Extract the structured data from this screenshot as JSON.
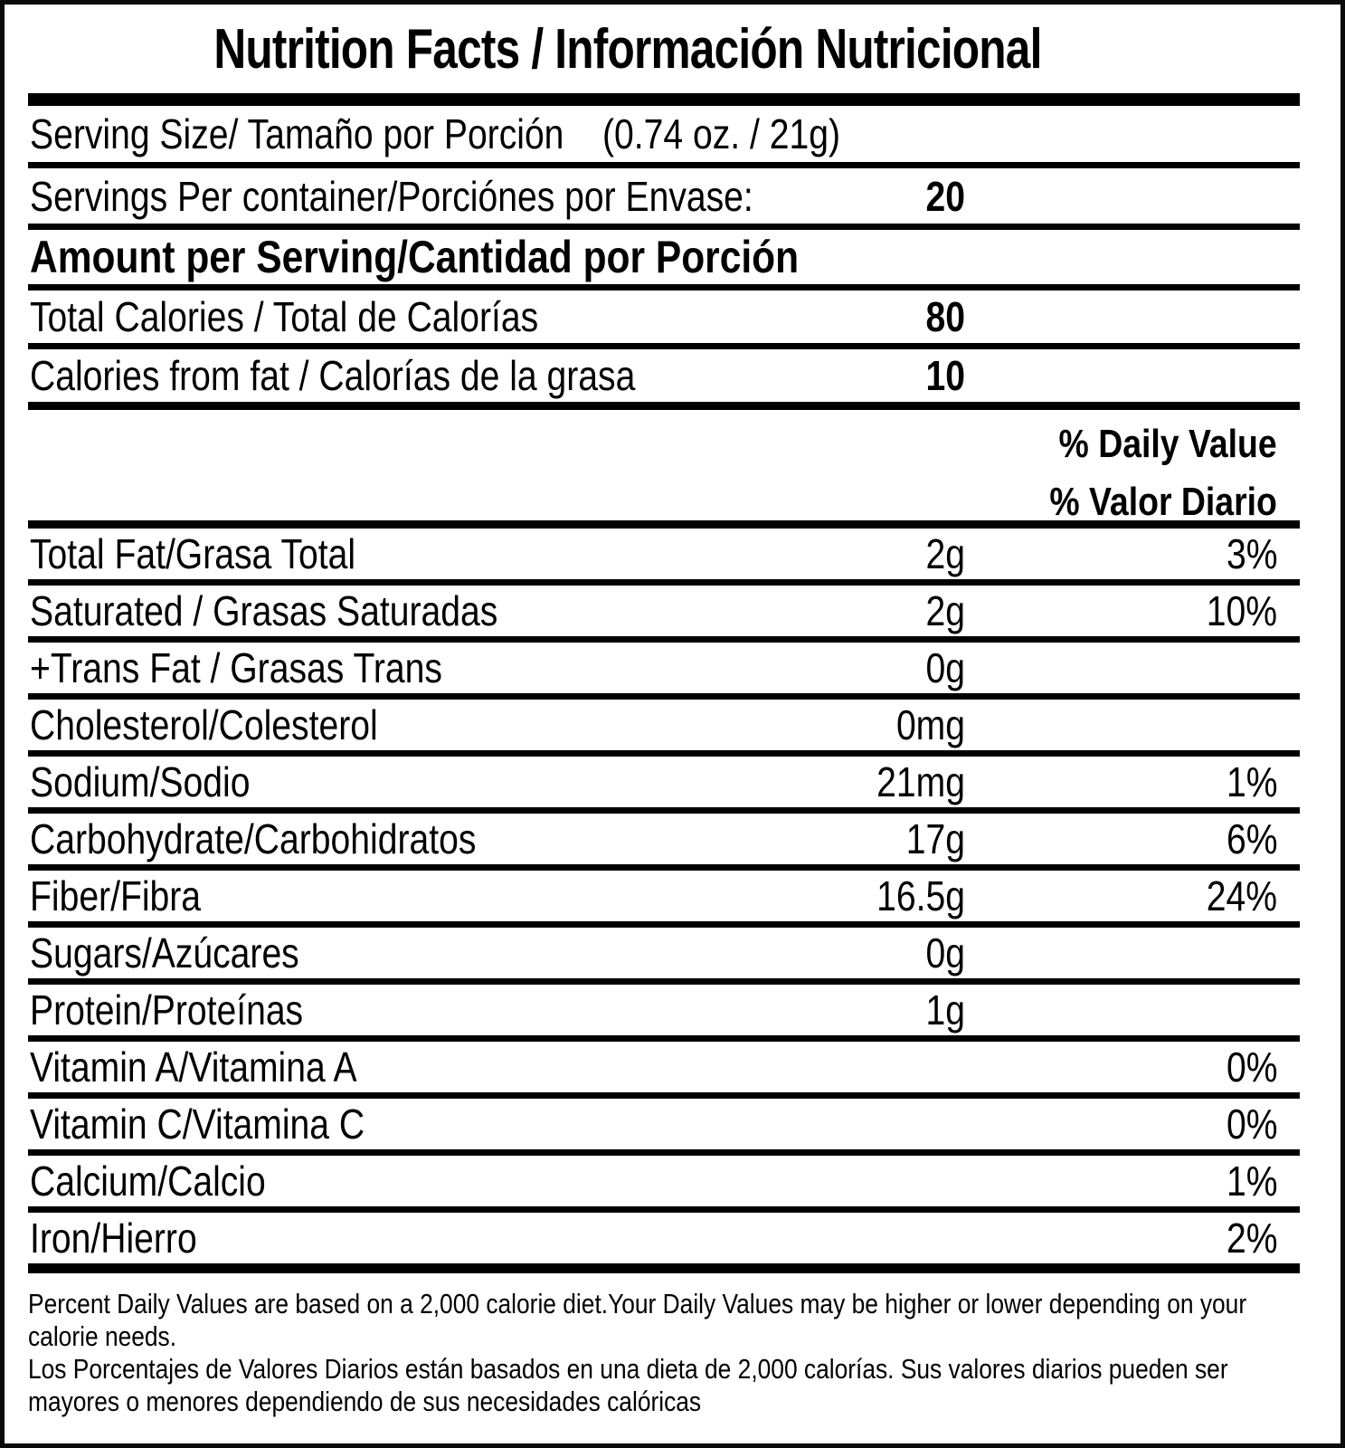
{
  "nutrition_label": {
    "title": "Nutrition Facts / Información Nutricional",
    "serving_size": {
      "label": "Serving Size/ Tamaño por Porción",
      "value": "(0.74 oz. / 21g)"
    },
    "servings_per_container": {
      "label": "Servings Per container/Porciónes por Envase:",
      "value": "20"
    },
    "amount_per_serving_heading": "Amount per Serving/Cantidad por Porción",
    "calories_rows": [
      {
        "label": "Total Calories / Total de Calorías",
        "amount": "80"
      },
      {
        "label": "Calories from fat / Calorías de la grasa",
        "amount": "10"
      }
    ],
    "daily_value_header": {
      "line_en": "% Daily Value",
      "line_es": "% Valor Diario"
    },
    "nutrient_rows": [
      {
        "label": "Total Fat/Grasa Total",
        "amount": "2g",
        "dv": "3%"
      },
      {
        "label": "Saturated / Grasas Saturadas",
        "amount": "2g",
        "dv": "10%"
      },
      {
        "label": "+Trans Fat / Grasas Trans",
        "amount": "0g",
        "dv": ""
      },
      {
        "label": "Cholesterol/Colesterol",
        "amount": "0mg",
        "dv": ""
      },
      {
        "label": "Sodium/Sodio",
        "amount": "21mg",
        "dv": "1%"
      },
      {
        "label": "Carbohydrate/Carbohidratos",
        "amount": "17g",
        "dv": "6%"
      },
      {
        "label": "Fiber/Fibra",
        "amount": "16.5g",
        "dv": "24%"
      },
      {
        "label": "Sugars/Azúcares",
        "amount": "0g",
        "dv": ""
      },
      {
        "label": "Protein/Proteínas",
        "amount": "1g",
        "dv": ""
      },
      {
        "label": "Vitamin A/Vitamina A",
        "amount": "",
        "dv": "0%"
      },
      {
        "label": "Vitamin C/Vitamina C",
        "amount": "",
        "dv": "0%"
      },
      {
        "label": "Calcium/Calcio",
        "amount": "",
        "dv": "1%"
      },
      {
        "label": "Iron/Hierro",
        "amount": "",
        "dv": "2%"
      }
    ],
    "footnote": {
      "en": "Percent Daily Values are based on a 2,000 calorie diet.Your Daily Values may be higher or lower depending on your calorie needs.",
      "es": "Los Porcentajes de Valores Diarios están basados en una dieta de 2,000 calorías. Sus valores diarios pueden ser mayores o menores dependiendo de sus necesidades calóricas"
    },
    "colors": {
      "ink": "#000000",
      "paper": "#ffffff"
    }
  }
}
